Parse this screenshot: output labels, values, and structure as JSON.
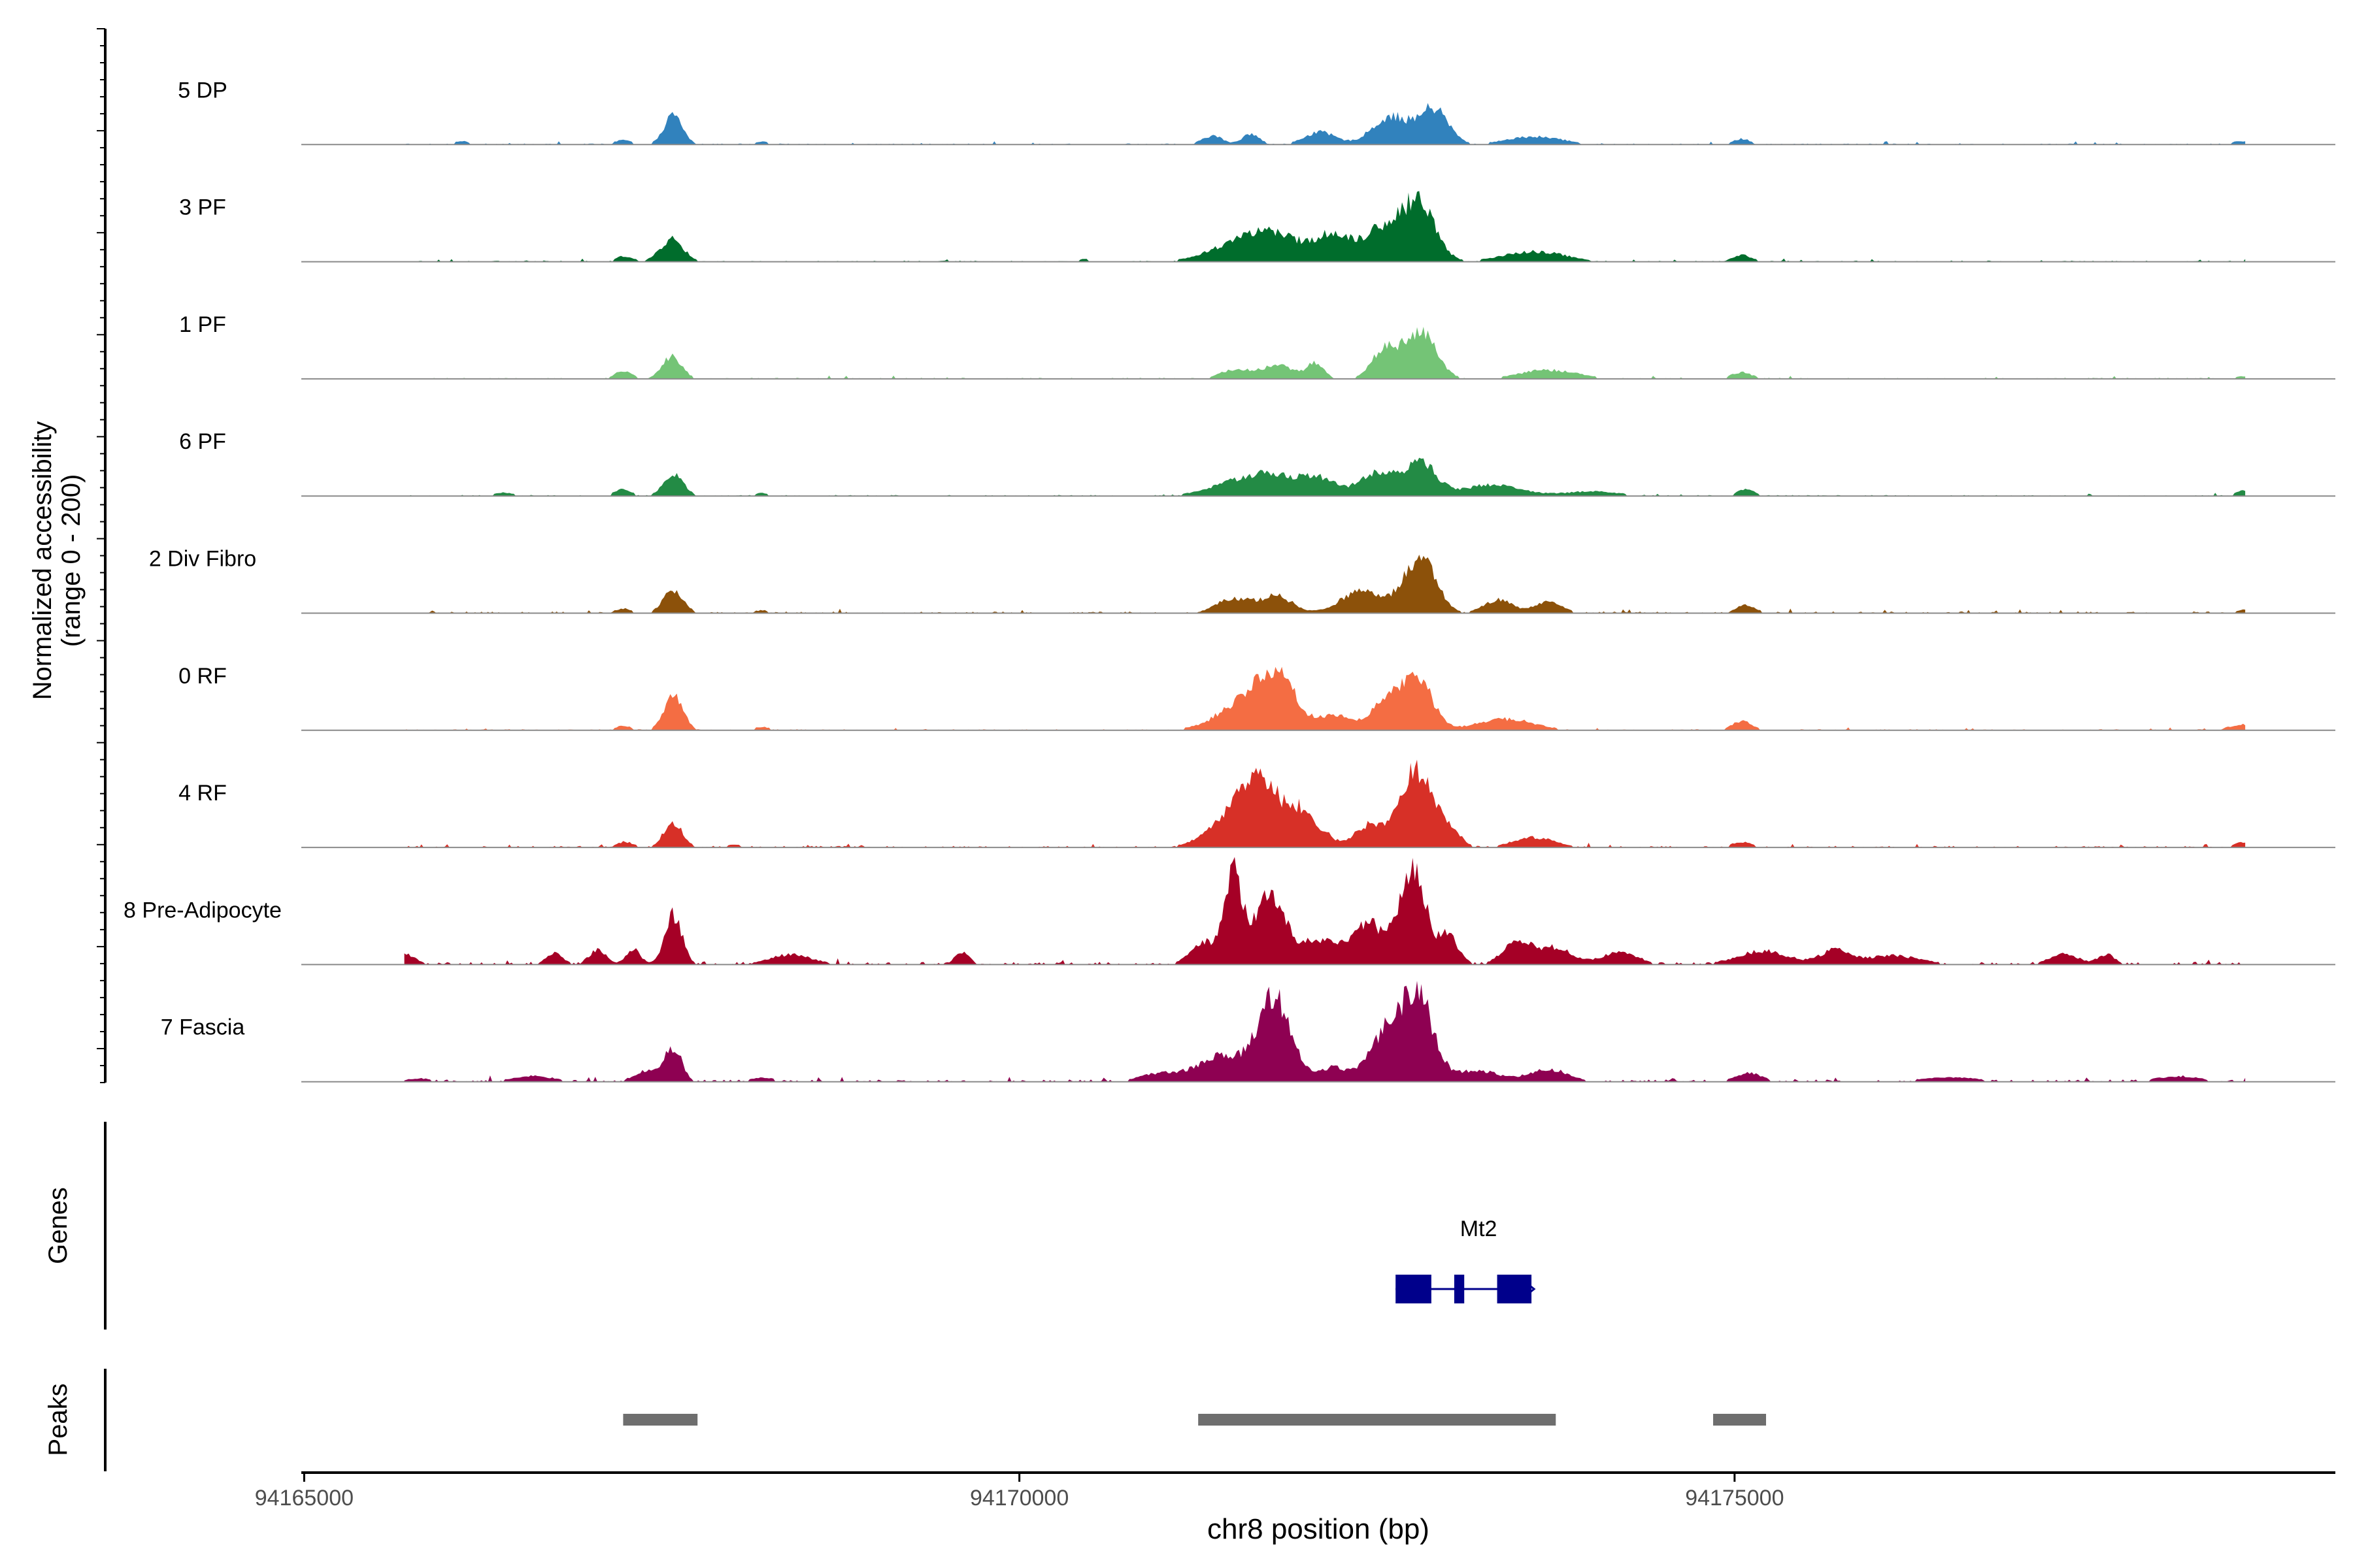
{
  "chart_data": {
    "type": "area",
    "title": "",
    "ylabel_line1": "Normalized accessibility",
    "ylabel_line2": "(range 0 - 200)",
    "xlabel": "chr8 position (bp)",
    "xlim": [
      94164980,
      94179200
    ],
    "ylim": [
      0,
      200
    ],
    "xticks": [
      94165000,
      94170000,
      94175000
    ],
    "xtick_labels": [
      "94165000",
      "94170000",
      "94175000"
    ],
    "tracks": [
      {
        "name": "5 DP",
        "color": "#3182BD",
        "peaks": [
          [
            94166100,
            6,
            60
          ],
          [
            94167230,
            8,
            60
          ],
          [
            94167580,
            52,
            65
          ],
          [
            94168200,
            5,
            60
          ],
          [
            94171350,
            16,
            70
          ],
          [
            94171620,
            20,
            60
          ],
          [
            94172100,
            22,
            110
          ],
          [
            94172600,
            50,
            130
          ],
          [
            94172900,
            62,
            100
          ],
          [
            94173600,
            14,
            200
          ],
          [
            94175050,
            10,
            60
          ],
          [
            94178550,
            6,
            80
          ]
        ],
        "noise": 2
      },
      {
        "name": "3 PF",
        "color": "#006D2C",
        "peaks": [
          [
            94167240,
            10,
            60
          ],
          [
            94167570,
            40,
            80
          ],
          [
            94170450,
            5,
            50
          ],
          [
            94171700,
            55,
            260
          ],
          [
            94172200,
            40,
            120
          ],
          [
            94172550,
            60,
            140
          ],
          [
            94172800,
            100,
            110
          ],
          [
            94173600,
            18,
            220
          ],
          [
            94175050,
            12,
            70
          ],
          [
            94178600,
            5,
            60
          ]
        ],
        "noise": 2
      },
      {
        "name": "1 PF",
        "color": "#74C476",
        "peaks": [
          [
            94167230,
            14,
            60
          ],
          [
            94167570,
            40,
            70
          ],
          [
            94171500,
            16,
            100
          ],
          [
            94171800,
            24,
            120
          ],
          [
            94172070,
            26,
            60
          ],
          [
            94172550,
            50,
            90
          ],
          [
            94172800,
            84,
            110
          ],
          [
            94173700,
            16,
            200
          ],
          [
            94175050,
            12,
            70
          ],
          [
            94178550,
            5,
            60
          ]
        ],
        "noise": 2
      },
      {
        "name": "6 PF",
        "color": "#238B45",
        "peaks": [
          [
            94166400,
            6,
            80
          ],
          [
            94167230,
            12,
            60
          ],
          [
            94167580,
            38,
            70
          ],
          [
            94168200,
            5,
            60
          ],
          [
            94171700,
            40,
            260
          ],
          [
            94172100,
            22,
            120
          ],
          [
            94172500,
            40,
            120
          ],
          [
            94172800,
            60,
            110
          ],
          [
            94173300,
            20,
            200
          ],
          [
            94174000,
            8,
            200
          ],
          [
            94175080,
            12,
            60
          ],
          [
            94178570,
            10,
            60
          ]
        ],
        "noise": 2
      },
      {
        "name": "2 Div Fibro",
        "color": "#8C510A",
        "peaks": [
          [
            94167230,
            8,
            60
          ],
          [
            94167580,
            40,
            70
          ],
          [
            94168200,
            5,
            60
          ],
          [
            94171500,
            26,
            120
          ],
          [
            94171800,
            30,
            110
          ],
          [
            94172400,
            40,
            150
          ],
          [
            94172800,
            100,
            110
          ],
          [
            94173350,
            24,
            100
          ],
          [
            94173700,
            22,
            90
          ],
          [
            94175080,
            14,
            70
          ],
          [
            94178600,
            8,
            80
          ]
        ],
        "noise": 3
      },
      {
        "name": "0 RF",
        "color": "#F46D43",
        "peaks": [
          [
            94167230,
            8,
            60
          ],
          [
            94167580,
            65,
            65
          ],
          [
            94168200,
            6,
            60
          ],
          [
            94171600,
            50,
            200
          ],
          [
            94171800,
            80,
            130
          ],
          [
            94172200,
            26,
            100
          ],
          [
            94172600,
            60,
            130
          ],
          [
            94172800,
            72,
            100
          ],
          [
            94173400,
            20,
            200
          ],
          [
            94175050,
            16,
            70
          ],
          [
            94178550,
            10,
            100
          ]
        ],
        "noise": 2
      },
      {
        "name": "4 RF",
        "color": "#D73027",
        "peaks": [
          [
            94167240,
            10,
            60
          ],
          [
            94167580,
            45,
            65
          ],
          [
            94168000,
            5,
            60
          ],
          [
            94171450,
            40,
            160
          ],
          [
            94171700,
            110,
            150
          ],
          [
            94171980,
            50,
            80
          ],
          [
            94172140,
            20,
            60
          ],
          [
            94172450,
            40,
            110
          ],
          [
            94172780,
            138,
            110
          ],
          [
            94173000,
            30,
            80
          ],
          [
            94173600,
            18,
            150
          ],
          [
            94175050,
            10,
            70
          ],
          [
            94178550,
            10,
            60
          ]
        ],
        "noise": 3
      },
      {
        "name": "8 Pre-Adipocyte",
        "color": "#A50026",
        "peaks": [
          [
            94165700,
            18,
            80
          ],
          [
            94166750,
            20,
            60
          ],
          [
            94167050,
            26,
            60
          ],
          [
            94167300,
            28,
            50
          ],
          [
            94167580,
            90,
            60
          ],
          [
            94168400,
            18,
            150
          ],
          [
            94169600,
            22,
            50
          ],
          [
            94171300,
            40,
            100
          ],
          [
            94171500,
            160,
            60
          ],
          [
            94171750,
            130,
            100
          ],
          [
            94172100,
            45,
            150
          ],
          [
            94172450,
            70,
            110
          ],
          [
            94172750,
            170,
            90
          ],
          [
            94173000,
            50,
            70
          ],
          [
            94173480,
            40,
            100
          ],
          [
            94173750,
            30,
            120
          ],
          [
            94174200,
            24,
            120
          ],
          [
            94175200,
            24,
            180
          ],
          [
            94175700,
            24,
            100
          ],
          [
            94176100,
            16,
            200
          ],
          [
            94177300,
            20,
            100
          ],
          [
            94177600,
            18,
            60
          ]
        ],
        "noise": 5
      },
      {
        "name": "7 Fascia",
        "color": "#8E0152",
        "peaks": [
          [
            94165800,
            6,
            100
          ],
          [
            94166600,
            10,
            150
          ],
          [
            94167400,
            20,
            90
          ],
          [
            94167580,
            60,
            60
          ],
          [
            94168200,
            8,
            80
          ],
          [
            94171000,
            15,
            150
          ],
          [
            94171400,
            45,
            150
          ],
          [
            94171780,
            150,
            120
          ],
          [
            94172200,
            25,
            100
          ],
          [
            94172550,
            80,
            110
          ],
          [
            94172780,
            155,
            110
          ],
          [
            94173200,
            20,
            150
          ],
          [
            94173700,
            22,
            140
          ],
          [
            94175100,
            16,
            90
          ],
          [
            94176500,
            8,
            200
          ],
          [
            94178100,
            10,
            150
          ]
        ],
        "noise": 4
      }
    ],
    "genes": [
      {
        "name": "Mt2",
        "strand": "+",
        "start": 94172630,
        "end": 94173580,
        "exons": [
          [
            94172630,
            94172880
          ],
          [
            94173040,
            94173110
          ],
          [
            94173340,
            94173580
          ]
        ],
        "color": "#00008B"
      }
    ],
    "peaks_track": [
      [
        94167230,
        94167750
      ],
      [
        94171250,
        94173750
      ],
      [
        94174850,
        94175220
      ]
    ],
    "peak_color": "#6E6E6E",
    "panel_labels": {
      "genes": "Genes",
      "peaks": "Peaks"
    }
  }
}
